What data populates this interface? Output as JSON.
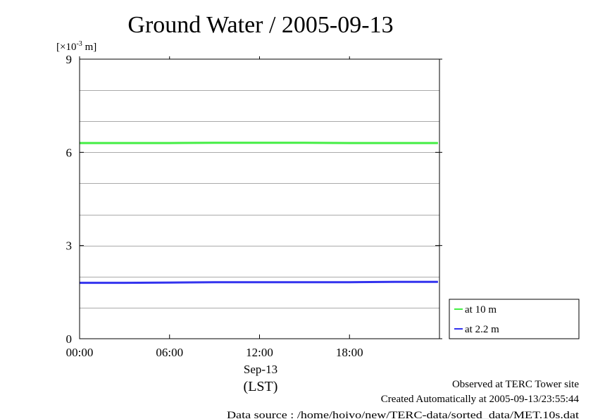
{
  "chart_data": {
    "type": "line",
    "title": "Ground Water / 2005-09-13",
    "unit_label": {
      "prefix": "[×10",
      "exponent": "-3",
      "suffix": " m]"
    },
    "ylim": [
      0,
      9
    ],
    "yticks": [
      "0",
      "3",
      "6",
      "9"
    ],
    "ygrid_step": 1,
    "xlim": [
      0,
      24
    ],
    "xticks": [
      {
        "value": 0,
        "label": "00:00"
      },
      {
        "value": 6,
        "label": "06:00"
      },
      {
        "value": 12,
        "label": "12:00"
      },
      {
        "value": 18,
        "label": "18:00"
      }
    ],
    "x_date_label": "Sep-13",
    "x_zone_label": "(LST)",
    "grid": true,
    "legend_position": "right-bottom",
    "series": [
      {
        "name": "at 10 m",
        "color": "#44ee44",
        "x": [
          0,
          3,
          6,
          9,
          12,
          15,
          18,
          21,
          23.9
        ],
        "values": [
          6.3,
          6.3,
          6.3,
          6.31,
          6.31,
          6.31,
          6.3,
          6.3,
          6.3
        ]
      },
      {
        "name": "at 2.2 m",
        "color": "#3333ee",
        "x": [
          0,
          3,
          6,
          9,
          12,
          15,
          18,
          21,
          23.9
        ],
        "values": [
          1.8,
          1.8,
          1.81,
          1.82,
          1.82,
          1.82,
          1.82,
          1.83,
          1.83
        ]
      }
    ]
  },
  "footer": {
    "observed": "Observed at TERC Tower site",
    "created": "Created Automatically at 2005-09-13/23:55:44",
    "source": "Data source : /home/hoivo/new/TERC-data/sorted_data/MET.10s.dat"
  }
}
